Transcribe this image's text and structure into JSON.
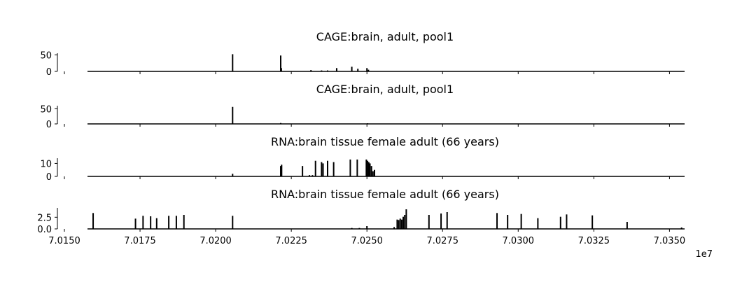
{
  "chart_data": [
    {
      "type": "bar",
      "title": "CAGE:brain, adult, pool1",
      "xlim": [
        7015000,
        7035500
      ],
      "ylim": [
        0,
        55
      ],
      "yticks": [
        0,
        50
      ],
      "ytick_labels": [
        "0",
        "50"
      ],
      "x": [
        7020560,
        7022150,
        7022170,
        7023150,
        7023500,
        7023700,
        7024000,
        7024500,
        7024700,
        7025000,
        7025050
      ],
      "values": [
        52,
        48,
        10,
        4,
        3,
        3,
        10,
        14,
        8,
        10,
        5
      ]
    },
    {
      "type": "bar",
      "title": "CAGE:brain, adult, pool1",
      "xlim": [
        7015000,
        7035500
      ],
      "ylim": [
        0,
        60
      ],
      "yticks": [
        0,
        50
      ],
      "ytick_labels": [
        "0",
        "50"
      ],
      "x": [
        7020560,
        7022150,
        7025020
      ],
      "values": [
        56,
        3,
        2
      ]
    },
    {
      "type": "bar",
      "title": "RNA:brain tissue female adult (66 years)",
      "xlim": [
        7015000,
        7035500
      ],
      "ylim": [
        0,
        14
      ],
      "yticks": [
        0,
        10
      ],
      "ytick_labels": [
        "0",
        "10"
      ],
      "x": [
        7020560,
        7022150,
        7022180,
        7022870,
        7023100,
        7023200,
        7023300,
        7023500,
        7023550,
        7023700,
        7023900,
        7024450,
        7024680,
        7024980,
        7025020,
        7025060,
        7025100,
        7025150,
        7025200,
        7025250
      ],
      "values": [
        2,
        8,
        9,
        8,
        1,
        1,
        12,
        11,
        10,
        12,
        11,
        13,
        13,
        13,
        12,
        11,
        10,
        8,
        4,
        5
      ]
    },
    {
      "type": "bar",
      "title": "RNA:brain tissue female adult (66 years)",
      "xlim": [
        7015000,
        7035500
      ],
      "ylim": [
        0,
        4.5
      ],
      "yticks": [
        0,
        2.5
      ],
      "ytick_labels": [
        "0.0",
        "2.5"
      ],
      "x": [
        7015950,
        7017350,
        7017600,
        7017850,
        7018050,
        7018450,
        7018700,
        7018950,
        7020560,
        7024500,
        7024750,
        7025000,
        7025900,
        7026000,
        7026050,
        7026100,
        7026150,
        7026200,
        7026250,
        7026300,
        7027050,
        7027450,
        7027650,
        7029300,
        7029650,
        7030100,
        7030650,
        7031400,
        7031600,
        7032450,
        7033600,
        7035400
      ],
      "values": [
        3.4,
        2.2,
        2.8,
        2.7,
        2.3,
        2.8,
        2.8,
        3.0,
        2.8,
        0.2,
        0.2,
        0.6,
        0.4,
        2.0,
        1.9,
        2.2,
        2.0,
        2.6,
        3.0,
        4.2,
        3.0,
        3.3,
        3.6,
        3.4,
        3.0,
        3.2,
        2.3,
        2.6,
        3.1,
        2.9,
        1.5,
        0.3
      ]
    }
  ],
  "xaxis": {
    "ticks": [
      7015000,
      7017500,
      7020000,
      7022500,
      7025000,
      7027500,
      7030000,
      7032500,
      7035000
    ],
    "tick_labels": [
      "7.0150",
      "7.0175",
      "7.0200",
      "7.0225",
      "7.0250",
      "7.0275",
      "7.0300",
      "7.0325",
      "7.0350"
    ],
    "offset_label": "1e7"
  }
}
